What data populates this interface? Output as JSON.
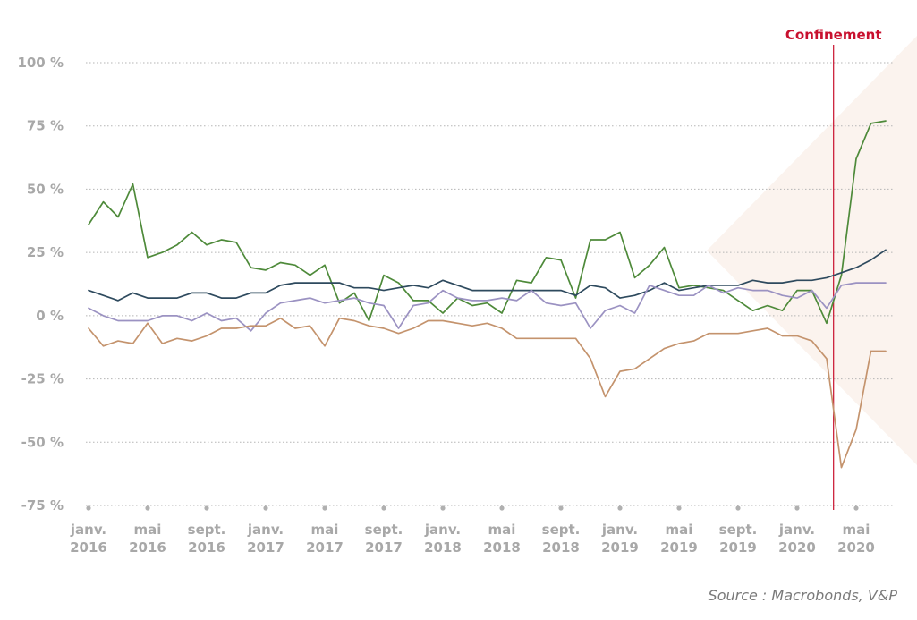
{
  "chart_data": {
    "type": "line",
    "title": "",
    "xlabel": "",
    "ylabel": "",
    "ylim": [
      -75,
      100
    ],
    "yticks": [
      "-75 %",
      "-50 %",
      "-25 %",
      "0 %",
      "25 %",
      "50 %",
      "75 %",
      "100 %"
    ],
    "ytick_values": [
      -75,
      -50,
      -25,
      0,
      25,
      50,
      75,
      100
    ],
    "grid": true,
    "x_start": "2016-01",
    "x_end": "2020-07",
    "xticks": [
      {
        "month": "janv.",
        "year": "2016",
        "date": "2016-01"
      },
      {
        "month": "mai",
        "year": "2016",
        "date": "2016-05"
      },
      {
        "month": "sept.",
        "year": "2016",
        "date": "2016-09"
      },
      {
        "month": "janv.",
        "year": "2017",
        "date": "2017-01"
      },
      {
        "month": "mai",
        "year": "2017",
        "date": "2017-05"
      },
      {
        "month": "sept.",
        "year": "2017",
        "date": "2017-09"
      },
      {
        "month": "janv.",
        "year": "2018",
        "date": "2018-01"
      },
      {
        "month": "mai",
        "year": "2018",
        "date": "2018-05"
      },
      {
        "month": "sept.",
        "year": "2018",
        "date": "2018-09"
      },
      {
        "month": "janv.",
        "year": "2019",
        "date": "2019-01"
      },
      {
        "month": "mai",
        "year": "2019",
        "date": "2019-05"
      },
      {
        "month": "sept.",
        "year": "2019",
        "date": "2019-09"
      },
      {
        "month": "janv.",
        "year": "2020",
        "date": "2020-01"
      },
      {
        "month": "mai",
        "year": "2020",
        "date": "2020-05"
      }
    ],
    "annotation": {
      "label": "Confinement",
      "date": "2020-03-15",
      "color": "#c8102e"
    },
    "series": [
      {
        "color": "#4e8a3a",
        "values": [
          36,
          45,
          39,
          52,
          23,
          25,
          28,
          33,
          28,
          30,
          29,
          19,
          18,
          21,
          20,
          16,
          20,
          5,
          9,
          -2,
          16,
          13,
          6,
          6,
          1,
          7,
          4,
          5,
          1,
          14,
          13,
          23,
          22,
          7,
          30,
          30,
          33,
          15,
          20,
          27,
          11,
          12,
          11,
          10,
          6,
          2,
          4,
          2,
          10,
          10,
          -3,
          16,
          62,
          76,
          77
        ]
      },
      {
        "color": "#2e4a5e",
        "values": [
          10,
          8,
          6,
          9,
          7,
          7,
          7,
          9,
          9,
          7,
          7,
          9,
          9,
          12,
          13,
          13,
          13,
          13,
          11,
          11,
          10,
          11,
          12,
          11,
          14,
          12,
          10,
          10,
          10,
          10,
          10,
          10,
          10,
          8,
          12,
          11,
          7,
          8,
          10,
          13,
          10,
          11,
          12,
          12,
          12,
          14,
          13,
          13,
          14,
          14,
          15,
          17,
          19,
          22,
          26
        ]
      },
      {
        "color": "#9b92c2",
        "values": [
          3,
          0,
          -2,
          -2,
          -2,
          0,
          0,
          -2,
          1,
          -2,
          -1,
          -6,
          1,
          5,
          6,
          7,
          5,
          6,
          7,
          5,
          4,
          -5,
          4,
          5,
          10,
          7,
          6,
          6,
          7,
          6,
          10,
          5,
          4,
          5,
          -5,
          2,
          4,
          1,
          12,
          10,
          8,
          8,
          12,
          9,
          11,
          10,
          10,
          8,
          7,
          10,
          3,
          12,
          13,
          13,
          13
        ]
      },
      {
        "color": "#c4936d",
        "values": [
          -5,
          -12,
          -10,
          -11,
          -3,
          -11,
          -9,
          -10,
          -8,
          -5,
          -5,
          -4,
          -4,
          -1,
          -5,
          -4,
          -12,
          -1,
          -2,
          -4,
          -5,
          -7,
          -5,
          -2,
          -2,
          -3,
          -4,
          -3,
          -5,
          -9,
          -9,
          -9,
          -9,
          -9,
          -17,
          -32,
          -22,
          -21,
          -17,
          -13,
          -11,
          -10,
          -7,
          -7,
          -7,
          -6,
          -5,
          -8,
          -8,
          -10,
          -17,
          -60,
          -45,
          -14,
          -14
        ]
      }
    ]
  },
  "source": "Source : Macrobonds, V&P"
}
